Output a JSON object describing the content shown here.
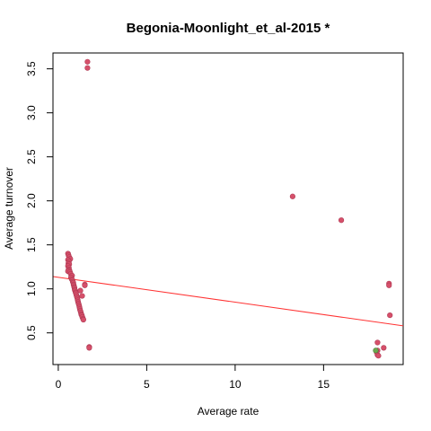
{
  "chart_data": {
    "type": "scatter",
    "title": "Begonia-Moonlight_et_al-2015 *",
    "xlabel": "Average rate",
    "ylabel": "Average turnover",
    "xlim": [
      -0.3,
      19.5
    ],
    "ylim": [
      0.14,
      3.68
    ],
    "x_ticks": [
      0,
      5,
      10,
      15
    ],
    "y_ticks": [
      0.5,
      1.0,
      1.5,
      2.0,
      2.5,
      3.0,
      3.5
    ],
    "x_tick_labels": [
      "0",
      "5",
      "10",
      "15"
    ],
    "y_tick_labels": [
      "0.5",
      "1.0",
      "1.5",
      "2.0",
      "2.5",
      "3.0",
      "3.5"
    ],
    "grid": false,
    "legend": "none",
    "point_color": "#d6506a",
    "secondary_point_color": "#6aa84f",
    "line_color": "#ff3333",
    "points": [
      [
        1.65,
        3.58
      ],
      [
        1.65,
        3.51
      ],
      [
        13.25,
        2.05
      ],
      [
        16.0,
        1.78
      ],
      [
        0.55,
        1.4
      ],
      [
        0.58,
        1.38
      ],
      [
        0.62,
        1.36
      ],
      [
        0.68,
        1.34
      ],
      [
        0.55,
        1.33
      ],
      [
        0.6,
        1.31
      ],
      [
        0.57,
        1.29
      ],
      [
        0.62,
        1.28
      ],
      [
        0.55,
        1.26
      ],
      [
        0.6,
        1.24
      ],
      [
        0.58,
        1.22
      ],
      [
        0.63,
        1.21
      ],
      [
        0.55,
        1.2
      ],
      [
        0.66,
        1.19
      ],
      [
        0.7,
        1.17
      ],
      [
        0.78,
        1.15
      ],
      [
        0.72,
        1.13
      ],
      [
        0.76,
        1.11
      ],
      [
        0.8,
        1.1
      ],
      [
        0.82,
        1.08
      ],
      [
        0.85,
        1.07
      ],
      [
        0.86,
        1.05
      ],
      [
        0.88,
        1.04
      ],
      [
        0.9,
        1.02
      ],
      [
        0.92,
        1.01
      ],
      [
        0.93,
        0.99
      ],
      [
        0.95,
        0.98
      ],
      [
        0.98,
        0.96
      ],
      [
        1.0,
        0.95
      ],
      [
        1.02,
        0.93
      ],
      [
        1.05,
        0.91
      ],
      [
        1.08,
        0.89
      ],
      [
        1.1,
        0.87
      ],
      [
        1.12,
        0.85
      ],
      [
        1.15,
        0.83
      ],
      [
        1.18,
        0.81
      ],
      [
        1.2,
        0.79
      ],
      [
        1.22,
        0.77
      ],
      [
        1.25,
        0.75
      ],
      [
        1.28,
        0.73
      ],
      [
        1.3,
        0.71
      ],
      [
        1.33,
        0.7
      ],
      [
        1.36,
        0.68
      ],
      [
        1.4,
        0.66
      ],
      [
        1.42,
        0.65
      ],
      [
        1.25,
        0.98
      ],
      [
        1.35,
        0.92
      ],
      [
        1.5,
        1.05
      ],
      [
        1.5,
        1.04
      ],
      [
        1.75,
        0.34
      ],
      [
        1.75,
        0.33
      ],
      [
        18.05,
        0.39
      ],
      [
        18.4,
        0.33
      ],
      [
        18.05,
        0.3
      ],
      [
        18.0,
        0.28
      ],
      [
        18.05,
        0.25
      ],
      [
        18.1,
        0.24
      ],
      [
        18.7,
        1.06
      ],
      [
        18.7,
        1.04
      ],
      [
        18.75,
        0.7
      ]
    ],
    "secondary_points": [
      [
        17.95,
        0.3
      ]
    ],
    "regression_line": {
      "x": [
        -0.3,
        19.5
      ],
      "y": [
        1.14,
        0.58
      ]
    }
  }
}
